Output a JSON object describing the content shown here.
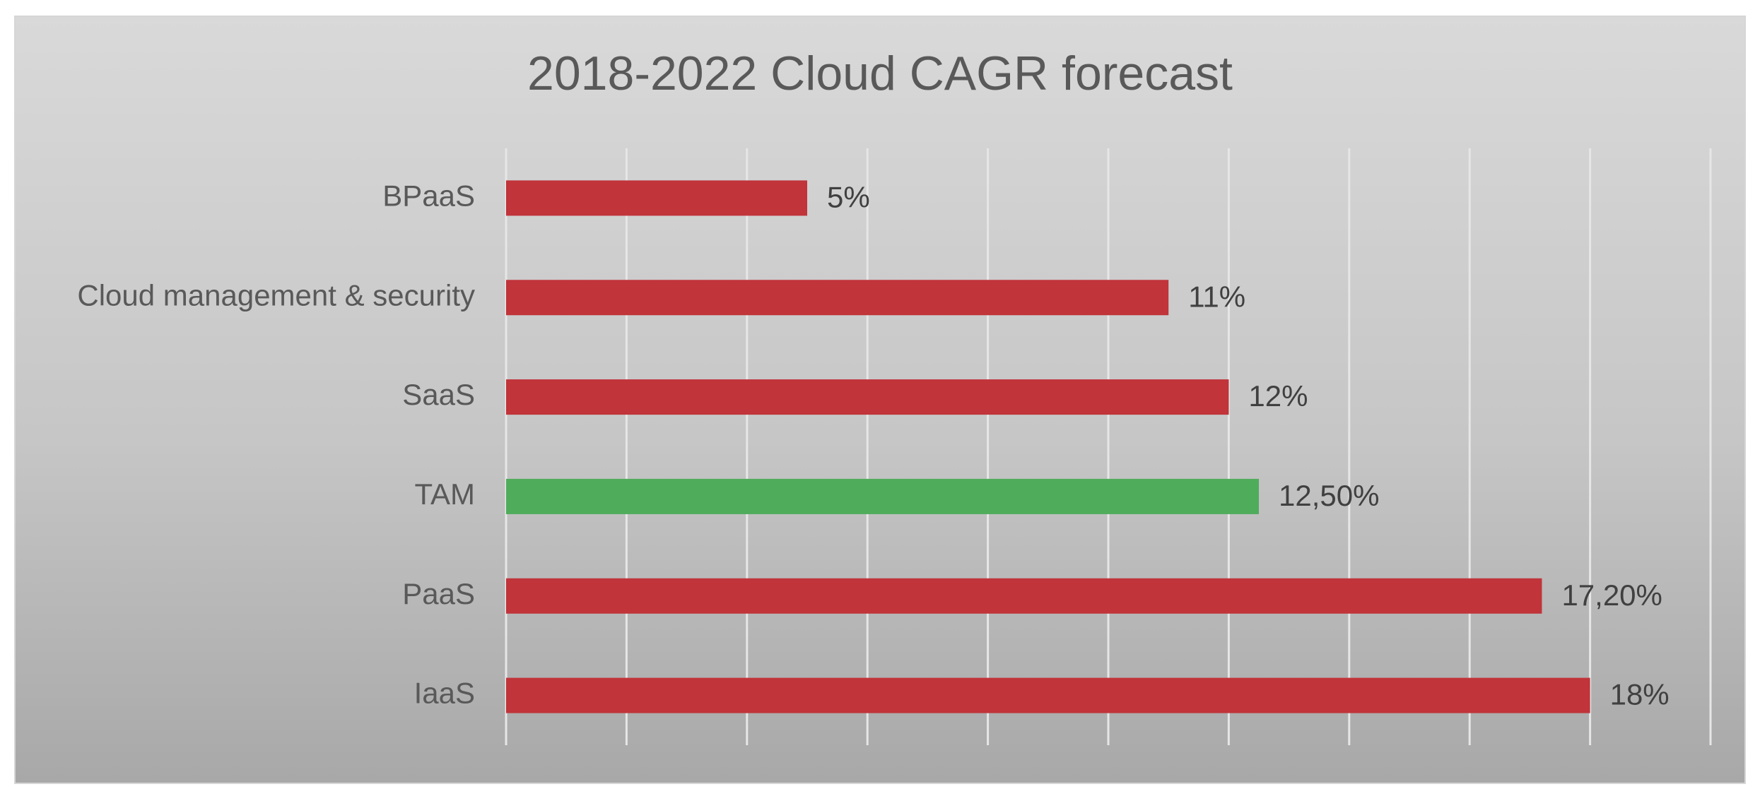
{
  "chart_data": {
    "type": "bar",
    "orientation": "horizontal",
    "title": "2018-2022 Cloud CAGR forecast",
    "xlabel": "",
    "ylabel": "",
    "categories": [
      "BPaaS",
      "Cloud management & security",
      "SaaS",
      "TAM",
      "PaaS",
      "IaaS"
    ],
    "values": [
      5,
      11,
      12,
      12.5,
      17.2,
      18
    ],
    "value_labels": [
      "5%",
      "11%",
      "12%",
      "12,50%",
      "17,20%",
      "18%"
    ],
    "xlim": [
      0,
      20
    ],
    "grid": true,
    "legend": "none",
    "colors": {
      "default_bar": "#c0343a",
      "highlight_bar": "#4fac5b",
      "highlight_category": "TAM",
      "gridline": "#e6e6e6"
    }
  }
}
